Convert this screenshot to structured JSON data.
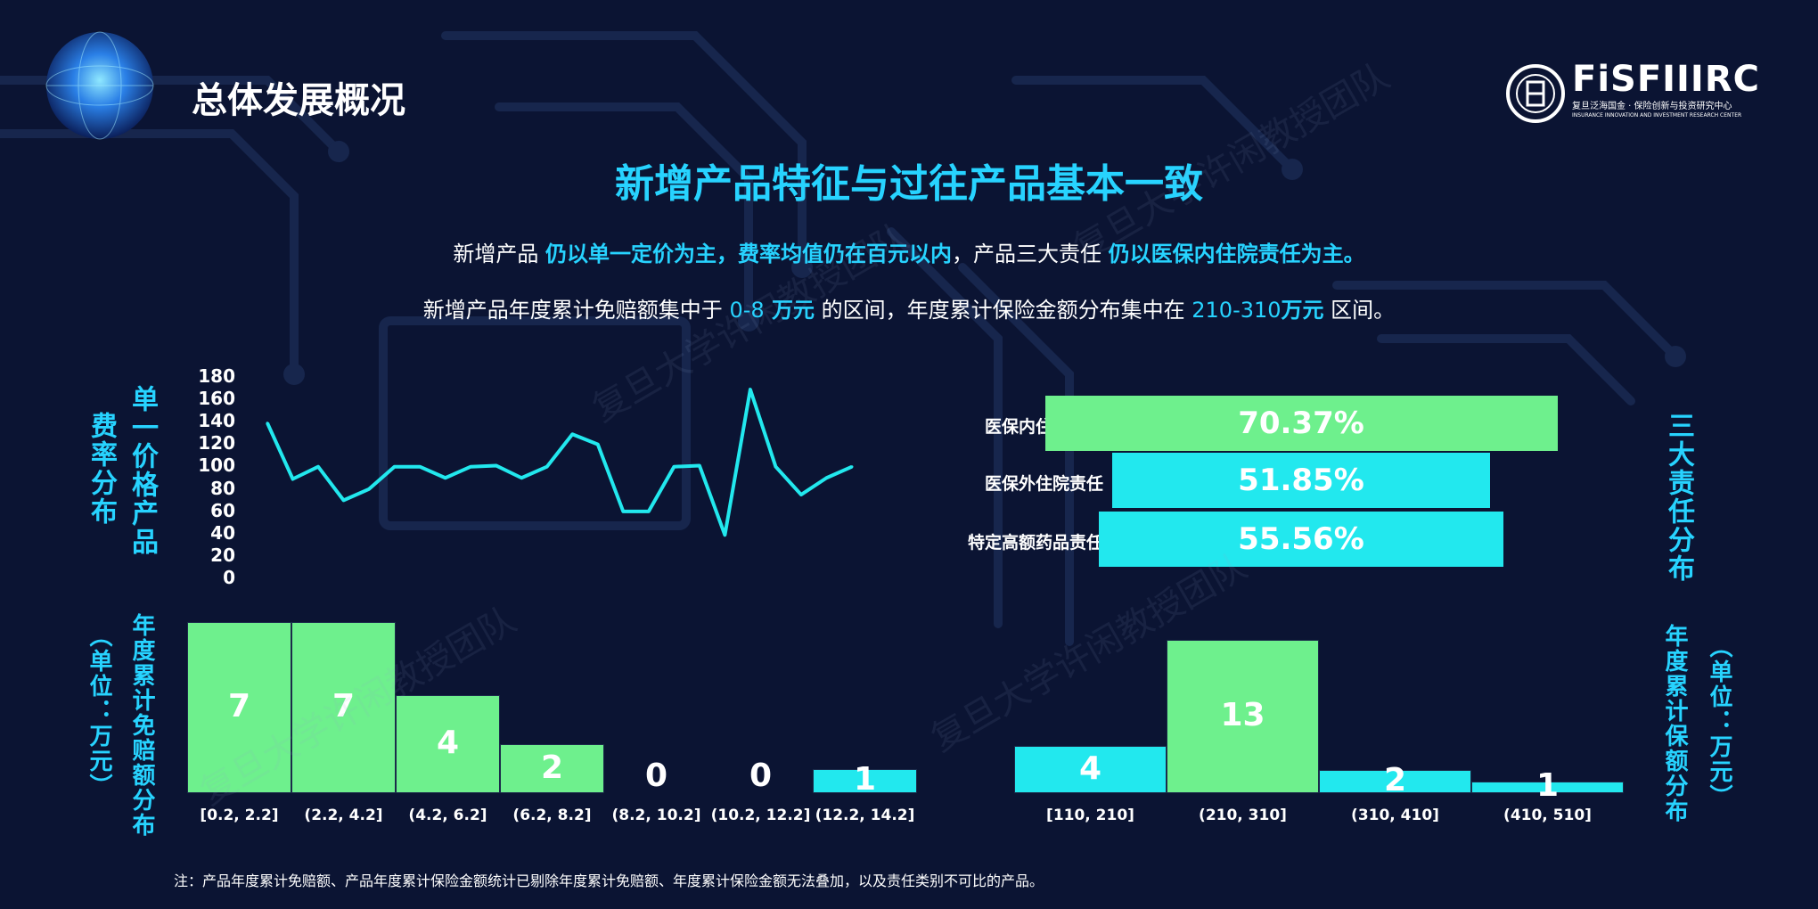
{
  "header": {
    "title": "总体发展概况"
  },
  "logo": {
    "text": "FiSFIIIRC",
    "subtitle_cn": "复旦泛海国金 · 保险创新与投资研究中心",
    "subtitle_en": "INSURANCE INNOVATION AND INVESTMENT RESEARCH CENTER"
  },
  "main_title": "新增产品特征与过往产品基本一致",
  "summary": {
    "line1": {
      "p1": "新增产品 ",
      "h1": "仍以单一定价为主，费率均值仍在百元以内",
      "p2": "，产品三大责任 ",
      "h2": "仍以医保内住院责任为主。"
    },
    "line2": {
      "p1": "新增产品年度累计免赔额集中于 ",
      "h1": "0-8",
      "h1b": " 万元",
      "p2": " 的区间，年度累计保险金额分布集中在 ",
      "h2": "210-310",
      "h2b": "万元",
      "p3": " 区间。"
    }
  },
  "watermark": "复旦大学许闲教授团队",
  "note": "注：产品年度累计免赔额、产品年度累计保险金额统计已剔除年度累计免赔额、年度累计保险金额无法叠加，以及责任类别不可比的产品。",
  "colors": {
    "green": "#6ef08d",
    "cyan": "#22e8ee",
    "accent": "#27d3ff",
    "bg": "#0b1433"
  },
  "chart_data": [
    {
      "type": "line",
      "ylabel_a": "单一价格产品",
      "ylabel_b": "费率分布",
      "ylim": [
        0,
        180
      ],
      "yticks": [
        180,
        160,
        140,
        120,
        100,
        80,
        60,
        40,
        20,
        0
      ],
      "values": [
        138,
        88,
        99,
        69,
        79,
        99,
        99,
        89,
        99,
        100,
        89,
        99,
        128,
        119,
        59,
        59,
        99,
        100,
        38,
        168,
        99,
        74,
        89,
        99
      ],
      "grid": false,
      "legend": "none"
    },
    {
      "type": "bar",
      "orientation": "horizontal",
      "label": "三大责任分布",
      "categories": [
        "医保内住院责任",
        "医保外住院责任",
        "特定高额药品责任"
      ],
      "values": [
        70.37,
        51.85,
        55.56
      ],
      "value_labels": [
        "70.37%",
        "51.85%",
        "55.56%"
      ],
      "colors": [
        "#6ef08d",
        "#22e8ee",
        "#22e8ee"
      ]
    },
    {
      "type": "bar",
      "label": "年度累计免赔额分布",
      "unit": "（单位：万元）",
      "categories": [
        "[0.2, 2.2]",
        "(2.2, 4.2]",
        "(4.2, 6.2]",
        "(6.2, 8.2]",
        "(8.2, 10.2]",
        "(10.2, 12.2]",
        "(12.2, 14.2]"
      ],
      "values": [
        7,
        7,
        4,
        2,
        0,
        0,
        1
      ],
      "colors": [
        "#6ef08d",
        "#6ef08d",
        "#6ef08d",
        "#6ef08d",
        "#6ef08d",
        "#6ef08d",
        "#22e8ee"
      ]
    },
    {
      "type": "bar",
      "label": "年度累计保额分布",
      "unit": "（单位：万元）",
      "categories": [
        "[110, 210]",
        "(210, 310]",
        "(310, 410]",
        "(410, 510]"
      ],
      "values": [
        4,
        13,
        2,
        1
      ],
      "colors": [
        "#22e8ee",
        "#6ef08d",
        "#22e8ee",
        "#22e8ee"
      ]
    }
  ]
}
